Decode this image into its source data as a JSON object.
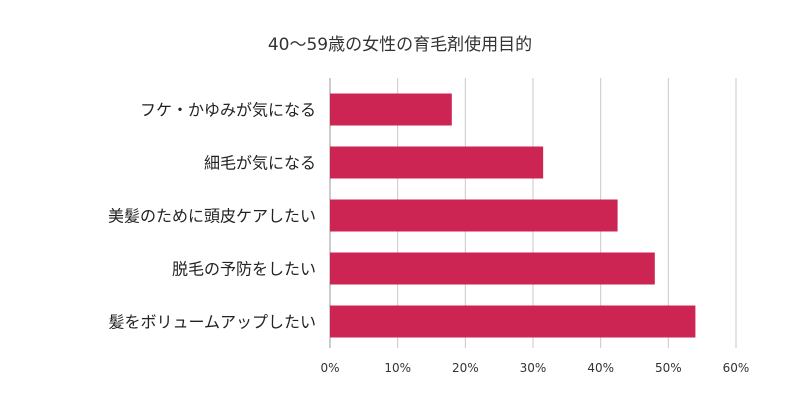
{
  "chart_data": {
    "type": "bar",
    "orientation": "horizontal",
    "title": "40〜59歳の女性の育毛剤使用目的",
    "xlabel": "",
    "ylabel": "",
    "categories": [
      "フケ・かゆみが気になる",
      "細毛が気になる",
      "美髪のために頭皮ケアしたい",
      "脱毛の予防をしたい",
      "髪をボリュームアップしたい"
    ],
    "values": [
      18,
      31.5,
      42.5,
      48,
      54
    ],
    "unit": "%",
    "xlim": [
      0,
      60
    ],
    "xticks": [
      0,
      10,
      20,
      30,
      40,
      50,
      60
    ],
    "xtick_labels": [
      "0%",
      "10%",
      "20%",
      "30%",
      "40%",
      "50%",
      "60%"
    ],
    "grid": true,
    "legend": "none",
    "bar_color": "#cc2554",
    "grid_color": "#c8c8c8"
  }
}
